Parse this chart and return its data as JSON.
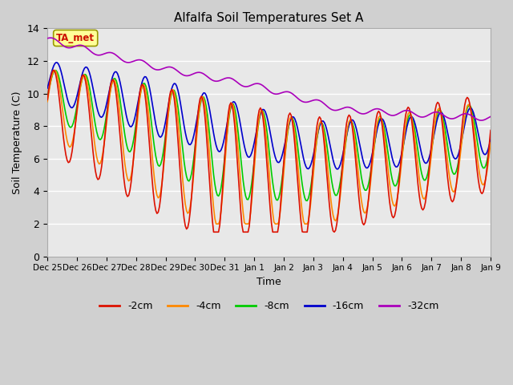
{
  "title": "Alfalfa Soil Temperatures Set A",
  "xlabel": "Time",
  "ylabel": "Soil Temperature (C)",
  "ylim": [
    0,
    14
  ],
  "yticks": [
    0,
    2,
    4,
    6,
    8,
    10,
    12,
    14
  ],
  "fig_bg": "#d0d0d0",
  "plot_bg": "#e8e8e8",
  "annotation_text": "TA_met",
  "annotation_color": "#cc1100",
  "annotation_bg": "#ffff99",
  "line_colors": {
    "-2cm": "#dd1100",
    "-4cm": "#ff8800",
    "-8cm": "#00cc00",
    "-16cm": "#0000cc",
    "-32cm": "#aa00bb"
  },
  "legend_labels": [
    "-2cm",
    "-4cm",
    "-8cm",
    "-16cm",
    "-32cm"
  ],
  "xticklabels": [
    "Dec 25",
    "Dec 26",
    "Dec 27",
    "Dec 28",
    "Dec 29",
    "Dec 30",
    "Dec 31",
    "Jan 1",
    "Jan 2",
    "Jan 3",
    "Jan 4",
    "Jan 5",
    "Jan 6",
    "Jan 7",
    "Jan 8",
    "Jan 9"
  ]
}
